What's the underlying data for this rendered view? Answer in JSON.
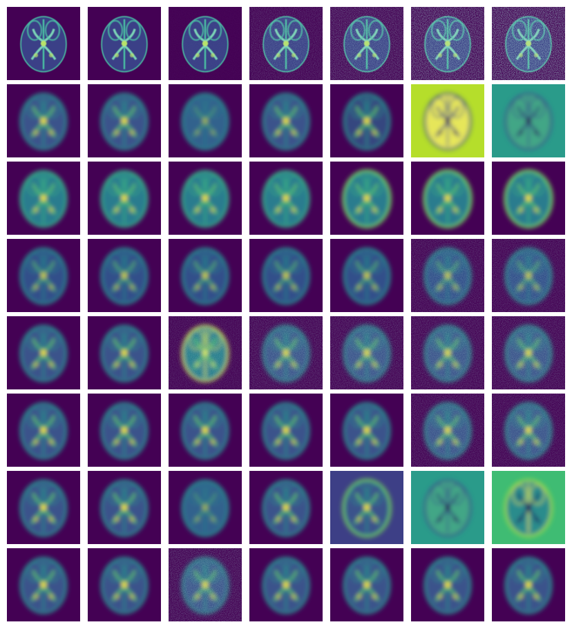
{
  "figure": {
    "rows": 8,
    "cols": 7,
    "colormap": [
      "#440154",
      "#3b528b",
      "#21918c",
      "#5ec962",
      "#fde725"
    ],
    "row_styles": [
      {
        "style": "sharp",
        "noise": [
          0.0,
          0.0,
          0.05,
          0.35,
          0.55,
          0.8,
          0.9
        ]
      },
      {
        "style": "blur",
        "variants": [
          "normal",
          "normal",
          "faint",
          "normal",
          "dark",
          "inverted-yellow",
          "inverted-teal"
        ]
      },
      {
        "style": "blur-bright",
        "variants": [
          "normal",
          "normal",
          "normal",
          "normal",
          "ring",
          "ring",
          "ring"
        ]
      },
      {
        "style": "blur-dim",
        "variants": [
          "normal",
          "normal",
          "normal",
          "normal",
          "normal",
          "textured",
          "textured"
        ]
      },
      {
        "style": "blur",
        "variants": [
          "normal",
          "normal",
          "bright-speckle",
          "speckle",
          "speckle",
          "speckle",
          "speckle"
        ]
      },
      {
        "style": "blur",
        "variants": [
          "normal",
          "normal",
          "normal",
          "normal",
          "normal",
          "textured",
          "textured"
        ]
      },
      {
        "style": "blur",
        "variants": [
          "normal",
          "normal",
          "faint",
          "normal",
          "halo",
          "inverted-teal",
          "inverted-green"
        ]
      },
      {
        "style": "blur",
        "variants": [
          "normal",
          "normal",
          "grainy",
          "normal",
          "normal",
          "normal",
          "normal"
        ]
      }
    ]
  }
}
